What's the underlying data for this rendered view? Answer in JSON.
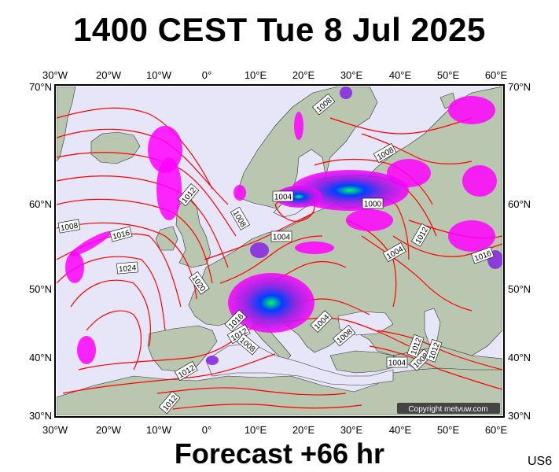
{
  "header": {
    "title": "1400 CEST Tue 8 Jul 2025"
  },
  "footer": {
    "forecast": "Forecast +66 hr",
    "code": "US6"
  },
  "map": {
    "copyright": "Copyright metvuw.com",
    "lon_labels": [
      "30°W",
      "20°W",
      "10°W",
      "0°",
      "10°E",
      "20°E",
      "30°E",
      "40°E",
      "50°E",
      "60°E"
    ],
    "lat_labels": [
      "70°N",
      "60°N",
      "50°N",
      "40°N",
      "30°N"
    ],
    "isobar_labels": [
      "1008",
      "1012",
      "1008",
      "1016",
      "1024",
      "1020",
      "1016",
      "1012",
      "1008",
      "1012",
      "1004",
      "1008",
      "1004",
      "1000",
      "1004",
      "1012",
      "1008",
      "1016",
      "1004",
      "1008",
      "1012",
      "1004",
      "1008",
      "1012",
      "1012"
    ],
    "colors": {
      "sea": "#e6e6f8",
      "land": "#b9c7b0",
      "isobar": "#ff0000",
      "rain_light": "#ff00ff",
      "rain_medium": "#8a2be2",
      "rain_heavy": "#0000ff",
      "rain_extreme": "#00ff66"
    }
  }
}
